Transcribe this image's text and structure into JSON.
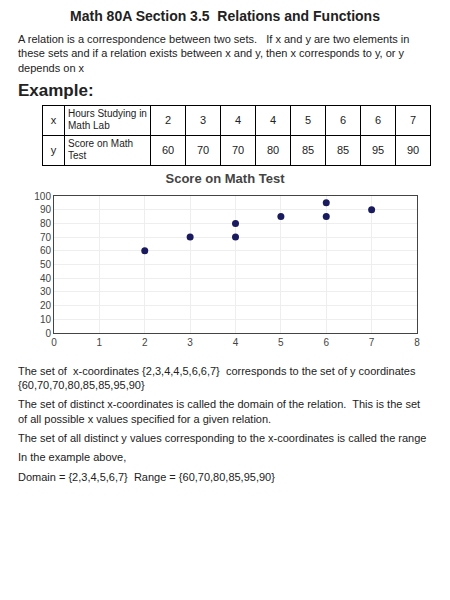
{
  "title": "Math 80A Section 3.5  Relations and Functions",
  "annotations": [
    "A relation is a correspondence between two sets.   If x and y are two elements in these sets and if a relation exists between x and y, then x corresponds to y, or y depends on x",
    "Example:",
    "The set of  x-coordinates {2,3,4,4,5,6,6,7}  corresponds to the set of y coordinates\n{60,70,70,80,85,85,95,90}",
    "The set of distinct x-coordinates is called the domain of the relation.  This is the set of all possible x values specified for a given relation.",
    "The set of all distinct y values corresponding to the x-coordinates is called the range",
    "In the example above,",
    "Domain = {2,3,4,5,6,7}  Range = {60,70,80,85,95,90}"
  ],
  "table": [
    {
      "label": "x",
      "description": "Hours Studying in\nMath Lab",
      "values": [
        2,
        3,
        4,
        4,
        5,
        6,
        6,
        7
      ]
    },
    {
      "label": "y",
      "description": "Score on Math Test",
      "values": [
        60,
        70,
        70,
        80,
        85,
        85,
        95,
        90
      ]
    }
  ],
  "chart_data": {
    "type": "scatter",
    "title": "Score on Math Test",
    "x": [
      2,
      3,
      4,
      4,
      5,
      6,
      6,
      7
    ],
    "values": [
      60,
      70,
      70,
      80,
      85,
      85,
      95,
      90
    ],
    "color": "#1a1a5e",
    "xlim": [
      0,
      8
    ],
    "ylim": [
      0,
      100
    ],
    "xticks": [
      0,
      1,
      2,
      3,
      4,
      5,
      6,
      7,
      8
    ],
    "yticks": [
      0,
      10,
      20,
      30,
      40,
      50,
      60,
      70,
      80,
      90,
      100
    ],
    "grid": true
  }
}
